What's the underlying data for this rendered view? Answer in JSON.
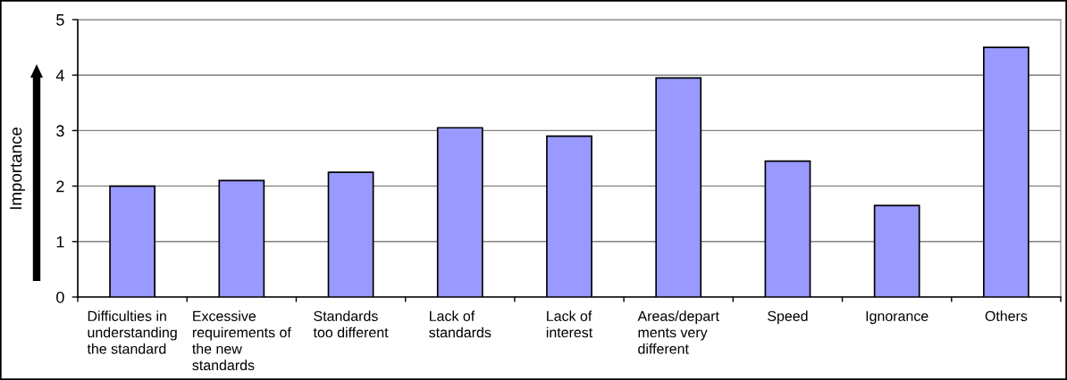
{
  "chart_data": {
    "type": "bar",
    "ylabel": "Importance",
    "categories": [
      "Difficulties in\nunderstanding\nthe standard",
      "Excessive\nrequirements of\nthe new\nstandards",
      "Standards\ntoo different",
      "Lack of\nstandards",
      "Lack of\ninterest",
      "Areas/depart\nments very\ndifferent",
      "Speed",
      "Ignorance",
      "Others"
    ],
    "values": [
      2.0,
      2.1,
      2.25,
      3.05,
      2.9,
      3.95,
      2.45,
      1.65,
      4.5
    ],
    "color": "#9999ff",
    "ylim": [
      0,
      5
    ],
    "yticks": [
      0,
      1,
      2,
      3,
      4,
      5
    ],
    "grid": "y"
  }
}
